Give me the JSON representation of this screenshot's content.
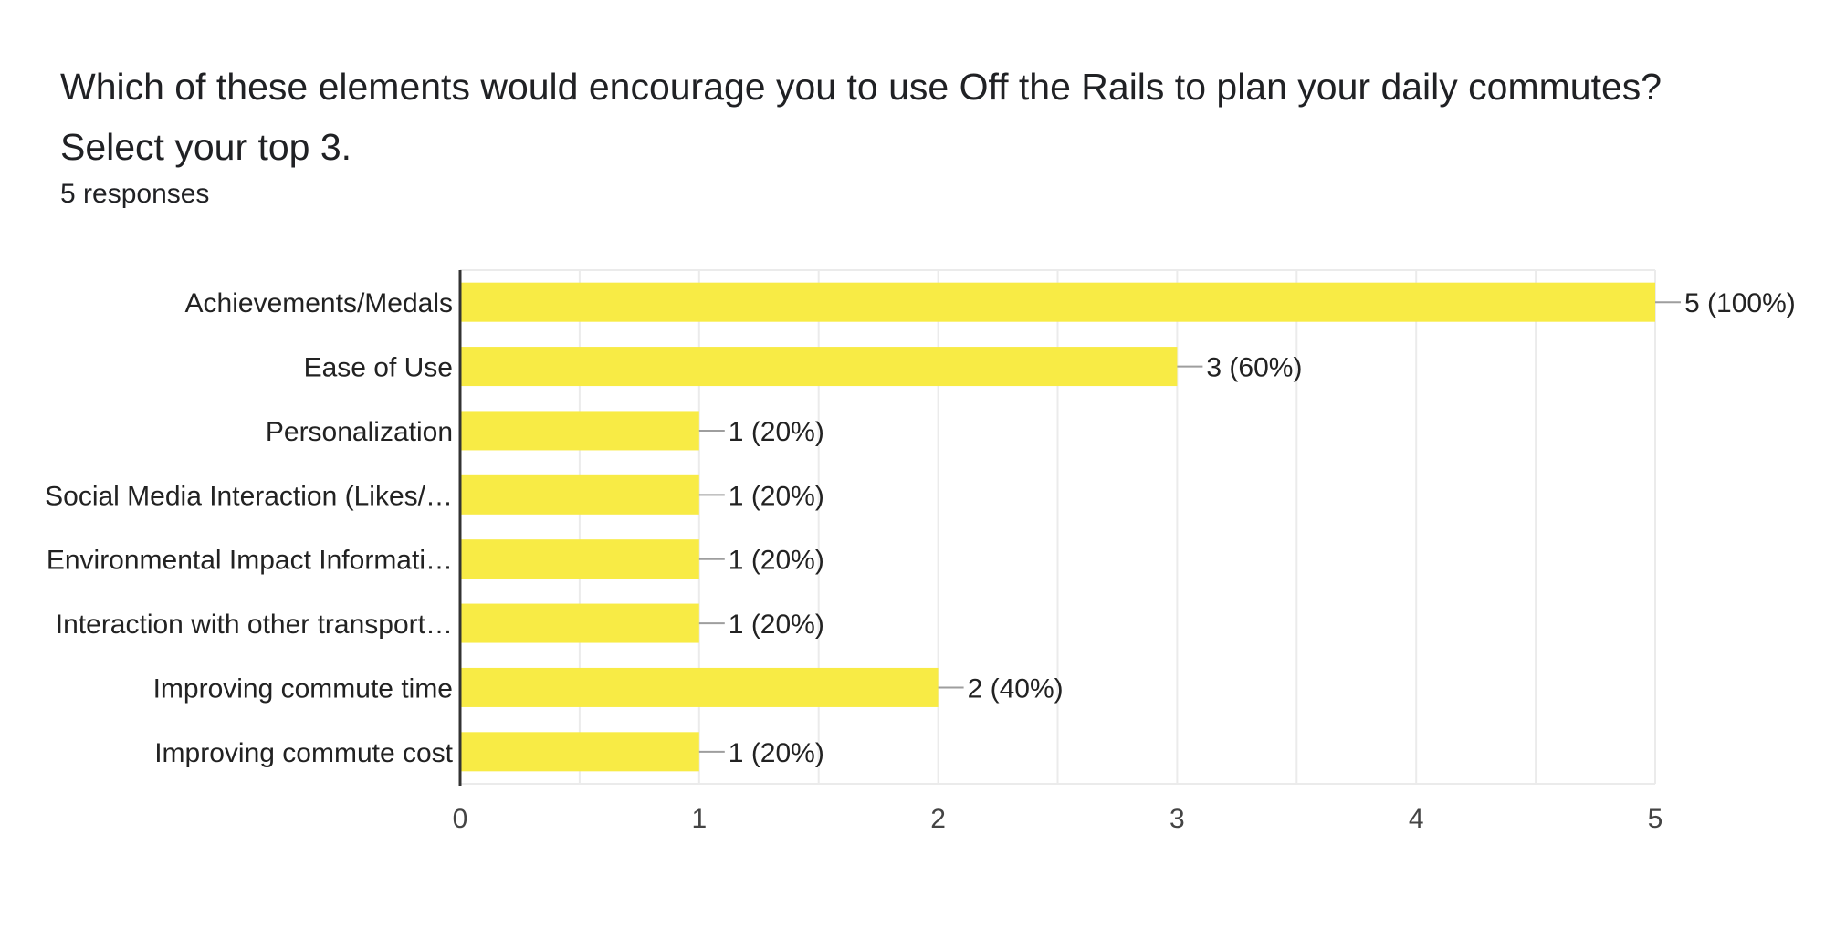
{
  "question": {
    "line1": "Which of these elements would encourage you to use Off the Rails to plan your daily commutes?",
    "line2": "Select your top 3."
  },
  "response_count": "5 responses",
  "colors": {
    "bar": "#f8eb45",
    "grid": "#ebebeb",
    "axis": "#333333",
    "leader": "#9e9e9e"
  },
  "chart_data": {
    "type": "bar",
    "orientation": "horizontal",
    "categories": [
      "Achievements/Medals",
      "Ease of Use",
      "Personalization",
      "Social Media Interaction (Likes/…",
      "Environmental Impact Informati…",
      "Interaction with other transport…",
      "Improving commute time",
      "Improving commute cost"
    ],
    "values": [
      5,
      3,
      1,
      1,
      1,
      1,
      2,
      1
    ],
    "value_labels": [
      "5 (100%)",
      "3 (60%)",
      "1 (20%)",
      "1 (20%)",
      "1 (20%)",
      "1 (20%)",
      "2 (40%)",
      "1 (20%)"
    ],
    "xlim": [
      0,
      5
    ],
    "xticks": [
      "0",
      "1",
      "2",
      "3",
      "4",
      "5"
    ],
    "grid": true,
    "legend": "none"
  }
}
